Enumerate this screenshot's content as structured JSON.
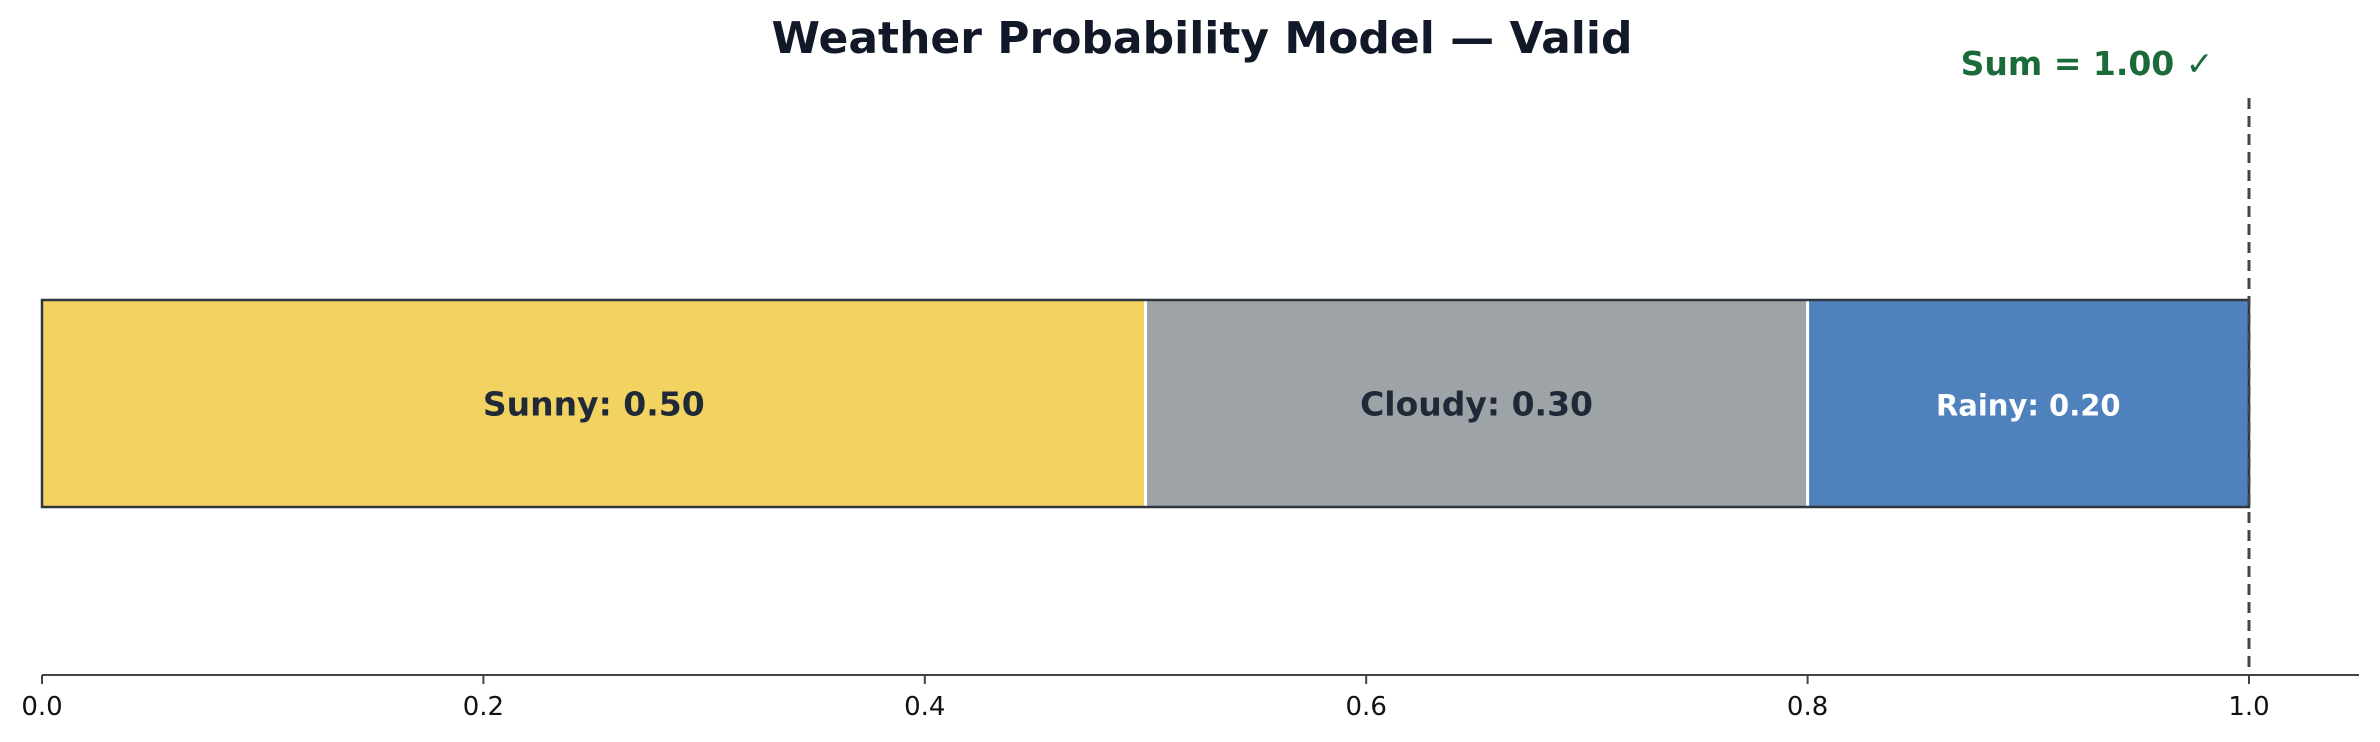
{
  "chart_data": {
    "type": "bar",
    "orientation": "horizontal-stacked",
    "title": "Weather Probability Model — Valid",
    "xlabel": "",
    "ylabel": "",
    "xlim": [
      0,
      1.05
    ],
    "x_ticks": [
      0.0,
      0.2,
      0.4,
      0.6,
      0.8,
      1.0
    ],
    "x_tick_labels": [
      "0.0",
      "0.2",
      "0.4",
      "0.6",
      "0.8",
      "1.0"
    ],
    "grid": false,
    "series": [
      {
        "name": "Sunny",
        "value": 0.5,
        "label": "Sunny: 0.50",
        "color": "#F2D361",
        "label_color": "#1f2937"
      },
      {
        "name": "Cloudy",
        "value": 0.3,
        "label": "Cloudy: 0.30",
        "color": "#9EA3A7",
        "label_color": "#1f2937"
      },
      {
        "name": "Rainy",
        "value": 0.2,
        "label": "Rainy: 0.20",
        "color": "#4F81BD",
        "label_color": "#ffffff"
      }
    ],
    "reference_line": {
      "x": 1.0,
      "style": "dashed",
      "color": "#444444"
    },
    "annotation": {
      "text": "Sum = 1.00 ✓",
      "color": "#1b6b3a"
    }
  }
}
